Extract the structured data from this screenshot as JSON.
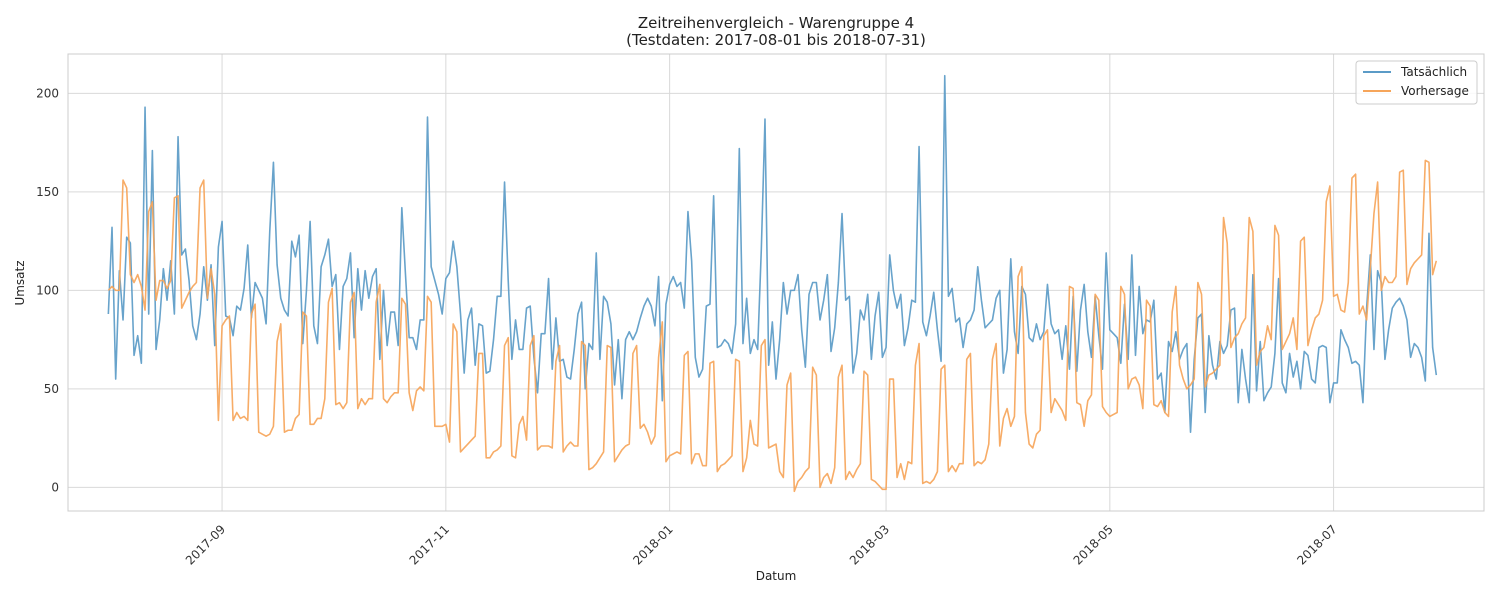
{
  "chart_data": {
    "type": "line",
    "title": "Zeitreihenvergleich - Warengruppe 4",
    "subtitle": "(Testdaten: 2017-08-01 bis 2018-07-31)",
    "xlabel": "Datum",
    "ylabel": "Umsatz",
    "x_range": [
      "2017-07-21",
      "2018-08-11"
    ],
    "ylim": [
      -12,
      220
    ],
    "x_ticks": [
      "2017-09",
      "2017-11",
      "2018-01",
      "2018-03",
      "2018-05",
      "2018-07"
    ],
    "y_ticks": [
      0,
      50,
      100,
      150,
      200
    ],
    "grid": true,
    "legend_position": "top-right",
    "colors": {
      "Tatsächlich": "#5b9bc7",
      "Vorhersage": "#f6a55a"
    },
    "start_date": "2017-08-01",
    "end_date": "2018-07-31",
    "series": [
      {
        "name": "Tatsächlich",
        "values": [
          88,
          132,
          55,
          110,
          85,
          127,
          124,
          67,
          77,
          63,
          193,
          88,
          171,
          70,
          85,
          111,
          95,
          115,
          88,
          178,
          118,
          121,
          105,
          82,
          75,
          88,
          112,
          95,
          113,
          72,
          122,
          135,
          87,
          86,
          77,
          92,
          90,
          101,
          123,
          86,
          104,
          100,
          96,
          83,
          130,
          165,
          113,
          96,
          90,
          87,
          125,
          117,
          128,
          73,
          100,
          135,
          82,
          73,
          112,
          118,
          126,
          102,
          108,
          70,
          102,
          106,
          119,
          76,
          111,
          90,
          110,
          96,
          107,
          111,
          65,
          100,
          72,
          89,
          89,
          72,
          142,
          108,
          76,
          76,
          70,
          85,
          85,
          188,
          112,
          105,
          98,
          88,
          106,
          109,
          125,
          112,
          88,
          58,
          85,
          91,
          62,
          83,
          82,
          58,
          59,
          75,
          97,
          97,
          155,
          105,
          65,
          85,
          70,
          70,
          91,
          92,
          66,
          48,
          78,
          78,
          106,
          60,
          86,
          64,
          65,
          56,
          55,
          70,
          88,
          94,
          50,
          73,
          70,
          119,
          65,
          97,
          94,
          83,
          52,
          75,
          45,
          75,
          79,
          75,
          79,
          86,
          92,
          96,
          92,
          82,
          107,
          44,
          93,
          103,
          107,
          102,
          104,
          91,
          140,
          115,
          66,
          56,
          60,
          92,
          93,
          148,
          71,
          72,
          75,
          73,
          68,
          83,
          172,
          73,
          96,
          68,
          75,
          70,
          121,
          187,
          62,
          84,
          55,
          75,
          104,
          88,
          100,
          100,
          108,
          80,
          61,
          98,
          104,
          104,
          85,
          95,
          108,
          69,
          81,
          104,
          139,
          95,
          97,
          58,
          68,
          90,
          85,
          98,
          65,
          87,
          99,
          66,
          71,
          118,
          100,
          91,
          98,
          72,
          81,
          95,
          94,
          173,
          84,
          77,
          87,
          99,
          80,
          64,
          209,
          97,
          101,
          84,
          86,
          71,
          83,
          85,
          90,
          112,
          95,
          81,
          83,
          85,
          96,
          100,
          58,
          70,
          116,
          79,
          68,
          102,
          98,
          76,
          74,
          83,
          75,
          79,
          103,
          83,
          78,
          80,
          65,
          82,
          60,
          97,
          59,
          90,
          103,
          79,
          66,
          97,
          77,
          60,
          119,
          80,
          78,
          76,
          63,
          93,
          65,
          118,
          67,
          102,
          78,
          85,
          84,
          95,
          55,
          58,
          38,
          74,
          69,
          79,
          65,
          70,
          73,
          28,
          65,
          86,
          88,
          38,
          77,
          62,
          55,
          74,
          68,
          72,
          90,
          91,
          43,
          70,
          55,
          43,
          108,
          49,
          74,
          44,
          48,
          51,
          68,
          106,
          53,
          48,
          68,
          56,
          64,
          50,
          69,
          67,
          55,
          53,
          71,
          72,
          71,
          43,
          53,
          53,
          80,
          75,
          71,
          63,
          64,
          62,
          43,
          91,
          118,
          70,
          110,
          104,
          65,
          80,
          91,
          94,
          96,
          92,
          85,
          66,
          73,
          71,
          66,
          54,
          129,
          71,
          57
        ]
      },
      {
        "name": "Vorhersage",
        "values": [
          100,
          102,
          100,
          100,
          156,
          152,
          108,
          104,
          108,
          102,
          90,
          140,
          145,
          95,
          105,
          105,
          101,
          105,
          147,
          148,
          91,
          95,
          99,
          102,
          104,
          152,
          156,
          96,
          111,
          98,
          34,
          82,
          85,
          87,
          34,
          38,
          35,
          36,
          34,
          88,
          93,
          28,
          27,
          26,
          27,
          31,
          74,
          83,
          28,
          29,
          29,
          35,
          37,
          89,
          87,
          32,
          32,
          35,
          35,
          45,
          94,
          101,
          42,
          43,
          40,
          43,
          94,
          99,
          40,
          45,
          42,
          45,
          45,
          94,
          103,
          45,
          43,
          46,
          48,
          48,
          96,
          93,
          48,
          39,
          49,
          51,
          49,
          97,
          94,
          31,
          31,
          31,
          32,
          23,
          83,
          79,
          18,
          20,
          22,
          24,
          26,
          68,
          68,
          15,
          15,
          18,
          19,
          21,
          72,
          76,
          16,
          15,
          32,
          36,
          24,
          72,
          77,
          19,
          21,
          21,
          21,
          20,
          64,
          72,
          18,
          21,
          23,
          21,
          21,
          74,
          72,
          9,
          10,
          12,
          15,
          18,
          72,
          71,
          13,
          16,
          19,
          21,
          22,
          68,
          72,
          30,
          32,
          28,
          22,
          26,
          66,
          84,
          13,
          16,
          17,
          18,
          17,
          67,
          69,
          12,
          17,
          17,
          11,
          11,
          63,
          64,
          8,
          11,
          12,
          14,
          16,
          65,
          64,
          8,
          15,
          34,
          22,
          21,
          72,
          75,
          20,
          21,
          22,
          8,
          5,
          52,
          58,
          -2,
          3,
          5,
          8,
          10,
          61,
          57,
          0,
          5,
          7,
          2,
          10,
          56,
          62,
          4,
          8,
          5,
          9,
          12,
          59,
          57,
          4,
          3,
          1,
          -1,
          -1,
          55,
          55,
          5,
          12,
          4,
          13,
          12,
          62,
          73,
          2,
          3,
          2,
          4,
          8,
          60,
          62,
          8,
          11,
          8,
          12,
          12,
          65,
          68,
          11,
          13,
          12,
          14,
          22,
          65,
          73,
          21,
          35,
          40,
          31,
          36,
          107,
          112,
          38,
          22,
          20,
          27,
          29,
          77,
          80,
          38,
          45,
          42,
          39,
          34,
          102,
          101,
          43,
          42,
          31,
          44,
          47,
          98,
          95,
          41,
          38,
          36,
          37,
          38,
          102,
          98,
          50,
          55,
          56,
          52,
          40,
          95,
          92,
          42,
          41,
          44,
          38,
          36,
          89,
          102,
          62,
          55,
          50,
          52,
          55,
          104,
          98,
          51,
          57,
          58,
          60,
          62,
          137,
          124,
          71,
          76,
          78,
          83,
          86,
          137,
          130,
          62,
          69,
          71,
          82,
          75,
          133,
          128,
          70,
          74,
          78,
          86,
          70,
          125,
          127,
          72,
          80,
          86,
          88,
          95,
          145,
          153,
          97,
          98,
          90,
          89,
          104,
          157,
          159,
          88,
          92,
          85,
          111,
          139,
          155,
          100,
          107,
          104,
          104,
          107,
          160,
          161,
          103,
          111,
          114,
          116,
          118,
          166,
          165,
          108,
          115
        ]
      }
    ]
  },
  "legend": {
    "actual_label": "Tatsächlich",
    "forecast_label": "Vorhersage"
  }
}
